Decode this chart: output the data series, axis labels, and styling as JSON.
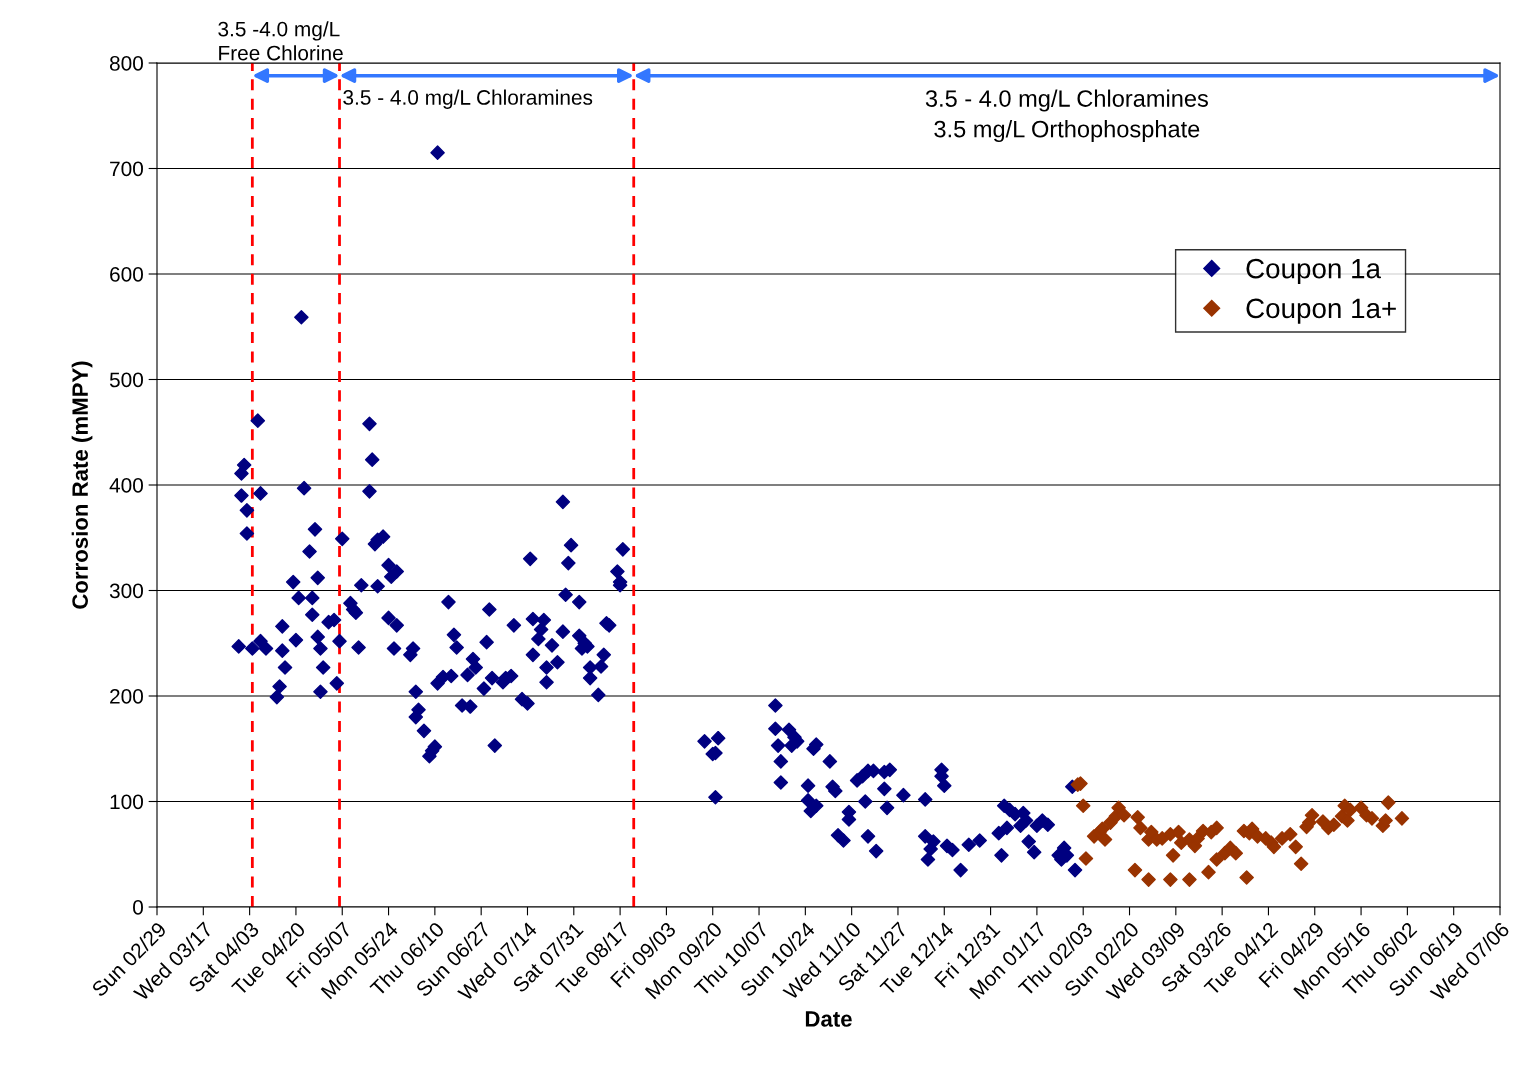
{
  "chart_data": {
    "type": "scatter",
    "xlabel": "Date",
    "ylabel": "Corrosion Rate (mMPY)",
    "xlim": [
      "2004-02-29",
      "2005-07-06"
    ],
    "xticks": [
      {
        "value": "2004-02-29",
        "label": "Sun 02/29"
      },
      {
        "value": "2004-03-17",
        "label": "Wed 03/17"
      },
      {
        "value": "2004-04-03",
        "label": "Sat 04/03"
      },
      {
        "value": "2004-04-20",
        "label": "Tue 04/20"
      },
      {
        "value": "2004-05-07",
        "label": "Fri 05/07"
      },
      {
        "value": "2004-05-24",
        "label": "Mon 05/24"
      },
      {
        "value": "2004-06-10",
        "label": "Thu 06/10"
      },
      {
        "value": "2004-06-27",
        "label": "Sun 06/27"
      },
      {
        "value": "2004-07-14",
        "label": "Wed 07/14"
      },
      {
        "value": "2004-07-31",
        "label": "Sat 07/31"
      },
      {
        "value": "2004-08-17",
        "label": "Tue 08/17"
      },
      {
        "value": "2004-09-03",
        "label": "Fri 09/03"
      },
      {
        "value": "2004-09-20",
        "label": "Mon 09/20"
      },
      {
        "value": "2004-10-07",
        "label": "Thu 10/07"
      },
      {
        "value": "2004-10-24",
        "label": "Sun 10/24"
      },
      {
        "value": "2004-11-10",
        "label": "Wed 11/10"
      },
      {
        "value": "2004-11-27",
        "label": "Sat 11/27"
      },
      {
        "value": "2004-12-14",
        "label": "Tue 12/14"
      },
      {
        "value": "2004-12-31",
        "label": "Fri 12/31"
      },
      {
        "value": "2005-01-17",
        "label": "Mon 01/17"
      },
      {
        "value": "2005-02-03",
        "label": "Thu 02/03"
      },
      {
        "value": "2005-02-20",
        "label": "Sun 02/20"
      },
      {
        "value": "2005-03-09",
        "label": "Wed 03/09"
      },
      {
        "value": "2005-03-26",
        "label": "Sat 03/26"
      },
      {
        "value": "2005-04-12",
        "label": "Tue 04/12"
      },
      {
        "value": "2005-04-29",
        "label": "Fri 04/29"
      },
      {
        "value": "2005-05-16",
        "label": "Mon 05/16"
      },
      {
        "value": "2005-06-02",
        "label": "Thu 06/02"
      },
      {
        "value": "2005-06-19",
        "label": "Sun 06/19"
      },
      {
        "value": "2005-07-06",
        "label": "Wed 07/06"
      }
    ],
    "ylim": [
      0,
      800
    ],
    "yticks": [
      0,
      100,
      200,
      300,
      400,
      500,
      600,
      700,
      800
    ],
    "grid": "y",
    "legend": "right",
    "marker": "diamond",
    "ref_lines": [
      {
        "axis": "x",
        "value": "2004-04-04",
        "color": "#ff0000",
        "line_style": "dashed"
      },
      {
        "axis": "x",
        "value": "2004-05-06",
        "color": "#ff0000",
        "line_style": "dashed"
      },
      {
        "axis": "x",
        "value": "2004-08-22",
        "color": "#ff0000",
        "line_style": "dashed"
      }
    ],
    "annotations": [
      {
        "text": "3.5 -4.0 mg/L\nFree Chlorine",
        "x": "2004-04-04",
        "y": 788
      },
      {
        "text": "3.5 - 4.0 mg/L Chloramines",
        "x": "2004-05-06",
        "y": 788
      },
      "3.5 - 4.0 mg/L Chloramines\n3.5 mg/L Orthophosphate"
    ],
    "series": [
      {
        "name": "Coupon 1a",
        "color": "#000080",
        "x": [
          "2004-03-30",
          "2004-03-31",
          "2004-04-01",
          "2004-03-31",
          "2004-04-02",
          "2004-04-02",
          "2004-04-06",
          "2004-04-07",
          "2004-04-04",
          "2004-04-07",
          "2004-04-09",
          "2004-04-13",
          "2004-04-14",
          "2004-04-15",
          "2004-04-15",
          "2004-04-16",
          "2004-04-19",
          "2004-04-20",
          "2004-04-21",
          "2004-04-22",
          "2004-04-23",
          "2004-04-25",
          "2004-04-27",
          "2004-04-26",
          "2004-04-26",
          "2004-04-28",
          "2004-04-28",
          "2004-04-29",
          "2004-04-30",
          "2004-04-29",
          "2004-05-02",
          "2004-05-04",
          "2004-05-05",
          "2004-05-06",
          "2004-05-07",
          "2004-05-10",
          "2004-05-11",
          "2004-05-12",
          "2004-05-13",
          "2004-05-14",
          "2004-05-17",
          "2004-05-18",
          "2004-05-17",
          "2004-05-19",
          "2004-05-20",
          "2004-05-22",
          "2004-05-20",
          "2004-05-24",
          "2004-05-25",
          "2004-05-27",
          "2004-05-24",
          "2004-05-27",
          "2004-05-26",
          "2004-06-01",
          "2004-06-02",
          "2004-06-03",
          "2004-06-03",
          "2004-06-04",
          "2004-06-06",
          "2004-06-08",
          "2004-06-09",
          "2004-06-10",
          "2004-06-11",
          "2004-06-11",
          "2004-06-13",
          "2004-06-16",
          "2004-06-15",
          "2004-06-17",
          "2004-06-18",
          "2004-06-20",
          "2004-06-23",
          "2004-06-22",
          "2004-06-24",
          "2004-06-25",
          "2004-06-28",
          "2004-06-29",
          "2004-06-30",
          "2004-07-01",
          "2004-07-02",
          "2004-07-05",
          "2004-07-06",
          "2004-07-08",
          "2004-07-09",
          "2004-07-12",
          "2004-07-14",
          "2004-07-15",
          "2004-07-16",
          "2004-07-16",
          "2004-07-18",
          "2004-07-19",
          "2004-07-20",
          "2004-07-21",
          "2004-07-21",
          "2004-07-23",
          "2004-07-25",
          "2004-07-27",
          "2004-07-27",
          "2004-07-28",
          "2004-07-29",
          "2004-07-30",
          "2004-08-02",
          "2004-08-02",
          "2004-08-03",
          "2004-08-04",
          "2004-08-05",
          "2004-08-06",
          "2004-08-06",
          "2004-08-09",
          "2004-08-10",
          "2004-08-11",
          "2004-08-12",
          "2004-08-13",
          "2004-08-16",
          "2004-08-17",
          "2004-08-17",
          "2004-08-18",
          "2004-09-17",
          "2004-09-20",
          "2004-09-21",
          "2004-09-22",
          "2004-09-21",
          "2004-10-13",
          "2004-10-13",
          "2004-10-14",
          "2004-10-15",
          "2004-10-15",
          "2004-10-18",
          "2004-10-19",
          "2004-10-20",
          "2004-10-21",
          "2004-10-25",
          "2004-10-25",
          "2004-10-27",
          "2004-10-28",
          "2004-10-26",
          "2004-10-28",
          "2004-11-02",
          "2004-11-03",
          "2004-11-04",
          "2004-11-05",
          "2004-11-07",
          "2004-11-09",
          "2004-11-09",
          "2004-11-12",
          "2004-11-14",
          "2004-11-15",
          "2004-11-16",
          "2004-11-16",
          "2004-11-18",
          "2004-11-19",
          "2004-11-22",
          "2004-11-24",
          "2004-11-22",
          "2004-11-23",
          "2004-11-29",
          "2004-12-07",
          "2004-12-07",
          "2004-12-08",
          "2004-12-09",
          "2004-12-10",
          "2004-12-13",
          "2004-12-13",
          "2004-12-14",
          "2004-12-15",
          "2004-12-17",
          "2004-12-20",
          "2004-12-23",
          "2004-12-27",
          "2005-01-03",
          "2005-01-04",
          "2005-01-05",
          "2005-01-06",
          "2005-01-07",
          "2005-01-09",
          "2005-01-11",
          "2005-01-12",
          "2005-01-13",
          "2005-01-14",
          "2005-01-16",
          "2005-01-17",
          "2005-01-19",
          "2005-01-21",
          "2005-01-25",
          "2005-01-26",
          "2005-01-27",
          "2005-01-28",
          "2005-01-31",
          "2005-01-30"
        ],
        "values": [
          247,
          411,
          419,
          390,
          376,
          354,
          461,
          392,
          245,
          252,
          245,
          199,
          209,
          243,
          266,
          227,
          308,
          253,
          293,
          559,
          397,
          337,
          358,
          293,
          277,
          312,
          256,
          245,
          227,
          204,
          270,
          272,
          212,
          252,
          349,
          288,
          282,
          279,
          246,
          305,
          458,
          424,
          394,
          344,
          348,
          351,
          304,
          324,
          313,
          318,
          274,
          267,
          245,
          239,
          245,
          204,
          180,
          187,
          167,
          143,
          148,
          152,
          715,
          212,
          218,
          219,
          289,
          258,
          246,
          191,
          190,
          220,
          235,
          227,
          207,
          251,
          282,
          217,
          153,
          213,
          217,
          219,
          267,
          197,
          193,
          330,
          273,
          239,
          254,
          263,
          272,
          213,
          227,
          248,
          232,
          384,
          261,
          296,
          326,
          343,
          289,
          257,
          245,
          250,
          247,
          227,
          217,
          201,
          228,
          239,
          269,
          267,
          318,
          308,
          305,
          339,
          157,
          145,
          104,
          160,
          146,
          191,
          169,
          153,
          138,
          118,
          168,
          153,
          161,
          157,
          115,
          101,
          150,
          154,
          91,
          96,
          138,
          114,
          110,
          68,
          63,
          90,
          83,
          120,
          124,
          100,
          67,
          129,
          129,
          53,
          128,
          130,
          112,
          94,
          106,
          102,
          67,
          45,
          55,
          62,
          130,
          124,
          115,
          58,
          54,
          35,
          59,
          63,
          70,
          49,
          96,
          75,
          92,
          88,
          77,
          89,
          82,
          62,
          52,
          77,
          82,
          78,
          49,
          45,
          56,
          49,
          35,
          114
        ]
      },
      {
        "name": "Coupon 1a+",
        "color": "#993300",
        "x": [
          "2005-02-01",
          "2005-02-02",
          "2005-02-03",
          "2005-02-04",
          "2005-02-07",
          "2005-02-09",
          "2005-02-10",
          "2005-02-11",
          "2005-02-13",
          "2005-02-15",
          "2005-02-16",
          "2005-02-18",
          "2005-02-22",
          "2005-02-23",
          "2005-02-24",
          "2005-02-27",
          "2005-02-27",
          "2005-02-28",
          "2005-03-02",
          "2005-03-04",
          "2005-03-07",
          "2005-03-07",
          "2005-03-08",
          "2005-03-10",
          "2005-03-11",
          "2005-03-14",
          "2005-03-14",
          "2005-03-16",
          "2005-03-17",
          "2005-03-19",
          "2005-03-21",
          "2005-03-22",
          "2005-03-24",
          "2005-03-24",
          "2005-03-27",
          "2005-03-29",
          "2005-03-31",
          "2005-04-03",
          "2005-04-04",
          "2005-04-05",
          "2005-04-06",
          "2005-04-08",
          "2005-04-11",
          "2005-04-13",
          "2005-04-14",
          "2005-04-17",
          "2005-04-20",
          "2005-04-22",
          "2005-04-24",
          "2005-04-26",
          "2005-04-27",
          "2005-04-28",
          "2005-05-02",
          "2005-05-04",
          "2005-05-06",
          "2005-05-09",
          "2005-05-10",
          "2005-05-11",
          "2005-05-12",
          "2005-05-16",
          "2005-05-18",
          "2005-05-20",
          "2005-05-24",
          "2005-05-25",
          "2005-05-26",
          "2005-05-31"
        ],
        "values": [
          116,
          117,
          96,
          46,
          67,
          71,
          74,
          64,
          80,
          86,
          94,
          87,
          35,
          85,
          75,
          26,
          64,
          71,
          64,
          65,
          26,
          69,
          49,
          71,
          61,
          26,
          64,
          58,
          65,
          72,
          33,
          71,
          75,
          45,
          51,
          56,
          51,
          72,
          28,
          70,
          74,
          67,
          65,
          61,
          57,
          65,
          69,
          57,
          41,
          76,
          80,
          87,
          81,
          75,
          78,
          86,
          96,
          82,
          92,
          94,
          87,
          84,
          77,
          82,
          99,
          84
        ]
      }
    ]
  }
}
